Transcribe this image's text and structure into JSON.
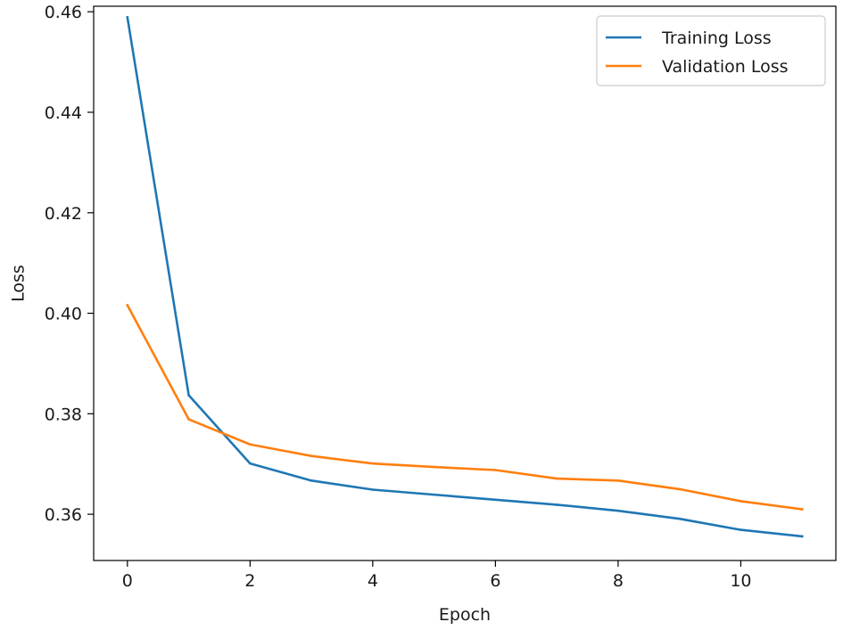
{
  "chart_data": {
    "type": "line",
    "xlabel": "Epoch",
    "ylabel": "Loss",
    "xlim": [
      -0.55,
      11.55
    ],
    "ylim": [
      0.3508,
      0.4611
    ],
    "x_ticks": [
      0,
      2,
      4,
      6,
      8,
      10
    ],
    "y_ticks": [
      0.36,
      0.38,
      0.4,
      0.42,
      0.44,
      0.46
    ],
    "y_tick_labels": [
      "0.36",
      "0.38",
      "0.40",
      "0.42",
      "0.44",
      "0.46"
    ],
    "grid": false,
    "legend_position": "top-right",
    "x": [
      0,
      1,
      2,
      3,
      4,
      5,
      6,
      7,
      8,
      9,
      10,
      11
    ],
    "series": [
      {
        "name": "Training Loss",
        "color": "#1f77b4",
        "values": [
          0.4589,
          0.3837,
          0.3701,
          0.3667,
          0.3649,
          0.3639,
          0.3629,
          0.3619,
          0.3607,
          0.3591,
          0.3569,
          0.3556
        ]
      },
      {
        "name": "Validation Loss",
        "color": "#ff7f0e",
        "values": [
          0.4016,
          0.3789,
          0.3739,
          0.3716,
          0.3701,
          0.3694,
          0.3688,
          0.3671,
          0.3667,
          0.365,
          0.3626,
          0.361
        ]
      }
    ]
  }
}
